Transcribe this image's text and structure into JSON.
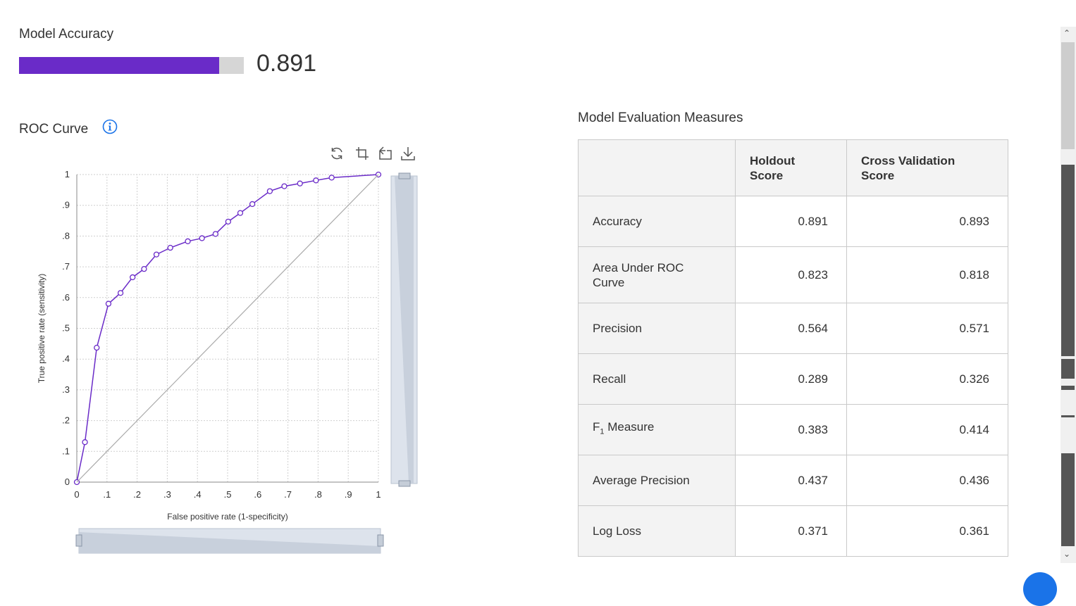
{
  "accuracy": {
    "title": "Model Accuracy",
    "value_text": "0.891",
    "value": 0.891,
    "bar_color": "#6a2bc8",
    "track_color": "#d6d6d6"
  },
  "roc": {
    "title": "ROC Curve",
    "info_icon": "info-circle-icon",
    "toolbar": [
      "refresh-icon",
      "crop-select-icon",
      "reset-zoom-icon",
      "download-icon"
    ]
  },
  "chart_data": {
    "type": "line",
    "title": "",
    "xlabel": "False positive rate (1-specificity)",
    "ylabel": "True positive rate (sensitivity)",
    "xlim": [
      0,
      1
    ],
    "ylim": [
      0,
      1
    ],
    "grid": true,
    "x_ticks": [
      "0",
      ".1",
      ".2",
      ".3",
      ".4",
      ".5",
      ".6",
      ".7",
      ".8",
      ".9",
      "1"
    ],
    "y_ticks": [
      "0",
      ".1",
      ".2",
      ".3",
      ".4",
      ".5",
      ".6",
      ".7",
      ".8",
      ".9",
      "1"
    ],
    "series": [
      {
        "color": "#6a2bc8",
        "markers": true,
        "x": [
          0,
          0.027,
          0.066,
          0.105,
          0.145,
          0.185,
          0.223,
          0.264,
          0.31,
          0.368,
          0.415,
          0.46,
          0.502,
          0.542,
          0.582,
          0.64,
          0.688,
          0.74,
          0.793,
          0.845,
          1.0
        ],
        "y": [
          0,
          0.13,
          0.437,
          0.58,
          0.615,
          0.666,
          0.693,
          0.74,
          0.762,
          0.783,
          0.793,
          0.807,
          0.847,
          0.875,
          0.904,
          0.946,
          0.962,
          0.971,
          0.981,
          0.99,
          1.0
        ]
      },
      {
        "color": "#aaaaaa",
        "markers": false,
        "x": [
          0,
          1
        ],
        "y": [
          0,
          1
        ]
      }
    ]
  },
  "table": {
    "title": "Model Evaluation Measures",
    "headers": [
      "",
      "Holdout\nScore",
      "Cross Validation\nScore"
    ],
    "header_holdout": "Holdout",
    "header_holdout2": "Score",
    "header_cv": "Cross Validation",
    "header_cv2": "Score",
    "rows": [
      {
        "label": "Accuracy",
        "holdout": "0.891",
        "cv": "0.893"
      },
      {
        "label": "Area Under ROC Curve",
        "label_line1": "Area Under ROC",
        "label_line2": "Curve",
        "holdout": "0.823",
        "cv": "0.818"
      },
      {
        "label": "Precision",
        "holdout": "0.564",
        "cv": "0.571"
      },
      {
        "label": "Recall",
        "holdout": "0.289",
        "cv": "0.326"
      },
      {
        "label": "F1 Measure",
        "label_main": "F",
        "label_sub": "1",
        "label_rest": " Measure",
        "holdout": "0.383",
        "cv": "0.414"
      },
      {
        "label": "Average Precision",
        "holdout": "0.437",
        "cv": "0.436"
      },
      {
        "label": "Log Loss",
        "holdout": "0.371",
        "cv": "0.361"
      }
    ]
  }
}
